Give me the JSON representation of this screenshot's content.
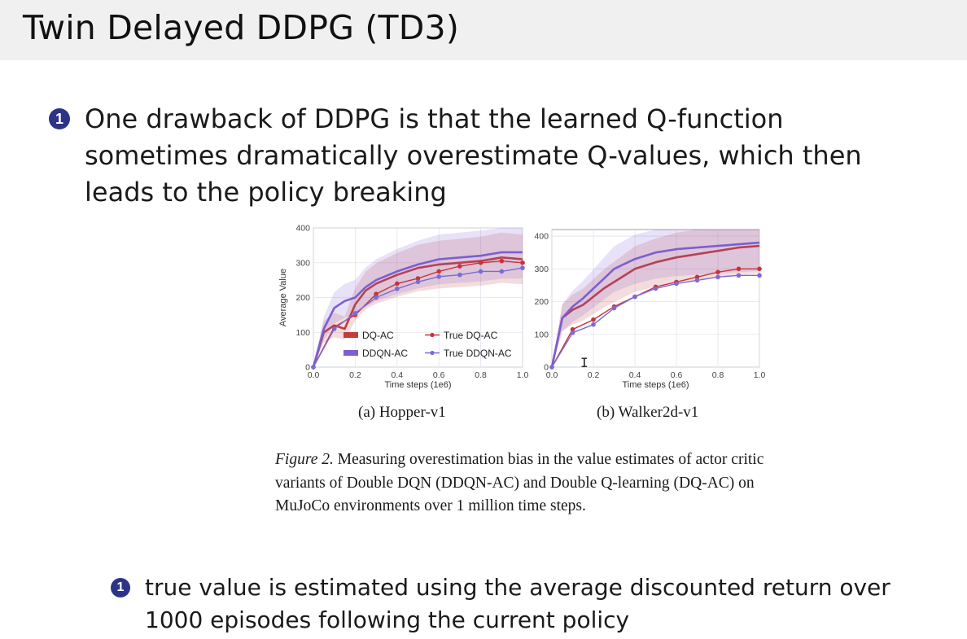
{
  "slide": {
    "title": "Twin Delayed DDPG (TD3)",
    "bullet_glyph": "1",
    "bullet1": "One drawback of DDPG is that the learned Q-function sometimes dramatically overestimate Q-values, which then leads to the policy breaking",
    "bullet2": "true value is estimated using the average discounted return over 1000 episodes following the current policy"
  },
  "figure": {
    "caption_label": "Figure 2.",
    "caption_text": " Measuring overestimation bias in the value estimates of actor critic variants of Double DQN (DDQN-AC) and Double Q-learning (DQ-AC) on MuJoCo environments over 1 million time steps.",
    "subcaption_a": "(a) Hopper-v1",
    "subcaption_b": "(b) Walker2d-v1"
  },
  "colors": {
    "dq_ac": "#c43b3b",
    "ddqn_ac": "#7b5fd0",
    "true_dq_ac": "#c8333a",
    "true_ddqn_ac": "#7a6bd6",
    "bullet": "#2d3487"
  },
  "chart_data": [
    {
      "type": "line",
      "title": "",
      "xlabel": "Time steps (1e6)",
      "ylabel": "Average Value",
      "xlim": [
        0,
        1.0
      ],
      "ylim": [
        0,
        400
      ],
      "xticks": [
        "0.0",
        "0.2",
        "0.4",
        "0.6",
        "0.8",
        "1.0"
      ],
      "yticks": [
        "0",
        "100",
        "200",
        "300",
        "400"
      ],
      "grid": true,
      "legend_position": "bottom-center",
      "series": [
        {
          "name": "DQ-AC",
          "style": "band",
          "x": [
            0,
            0.05,
            0.1,
            0.15,
            0.2,
            0.25,
            0.3,
            0.4,
            0.5,
            0.6,
            0.7,
            0.8,
            0.9,
            1.0
          ],
          "y": [
            0,
            100,
            120,
            110,
            180,
            220,
            240,
            265,
            285,
            295,
            300,
            305,
            315,
            310
          ]
        },
        {
          "name": "DDQN-AC",
          "style": "band",
          "x": [
            0,
            0.05,
            0.1,
            0.15,
            0.2,
            0.25,
            0.3,
            0.4,
            0.5,
            0.6,
            0.7,
            0.8,
            0.9,
            1.0
          ],
          "y": [
            0,
            110,
            170,
            190,
            200,
            230,
            250,
            275,
            295,
            310,
            315,
            320,
            330,
            330
          ]
        },
        {
          "name": "True DQ-AC",
          "style": "markers",
          "x": [
            0,
            0.1,
            0.2,
            0.3,
            0.4,
            0.5,
            0.6,
            0.7,
            0.8,
            0.9,
            1.0
          ],
          "y": [
            0,
            115,
            150,
            210,
            240,
            255,
            275,
            290,
            300,
            305,
            300
          ]
        },
        {
          "name": "True DDQN-AC",
          "style": "markers",
          "x": [
            0,
            0.1,
            0.2,
            0.3,
            0.4,
            0.5,
            0.6,
            0.7,
            0.8,
            0.9,
            1.0
          ],
          "y": [
            0,
            110,
            155,
            200,
            225,
            245,
            260,
            265,
            275,
            275,
            285
          ]
        }
      ]
    },
    {
      "type": "line",
      "title": "",
      "xlabel": "Time steps (1e6)",
      "ylabel": "",
      "xlim": [
        0,
        1.0
      ],
      "ylim": [
        0,
        420
      ],
      "xticks": [
        "0.0",
        "0.2",
        "0.4",
        "0.6",
        "0.8",
        "1.0"
      ],
      "yticks": [
        "0",
        "100",
        "200",
        "300",
        "400"
      ],
      "grid": true,
      "legend_position": "none",
      "series": [
        {
          "name": "DQ-AC",
          "style": "band",
          "x": [
            0,
            0.05,
            0.1,
            0.15,
            0.2,
            0.25,
            0.3,
            0.4,
            0.5,
            0.6,
            0.7,
            0.8,
            0.9,
            1.0
          ],
          "y": [
            0,
            150,
            175,
            190,
            215,
            240,
            260,
            300,
            320,
            335,
            345,
            355,
            365,
            370
          ]
        },
        {
          "name": "DDQN-AC",
          "style": "band",
          "x": [
            0,
            0.05,
            0.1,
            0.15,
            0.2,
            0.25,
            0.3,
            0.4,
            0.5,
            0.6,
            0.7,
            0.8,
            0.9,
            1.0
          ],
          "y": [
            0,
            150,
            185,
            210,
            240,
            270,
            300,
            330,
            350,
            360,
            365,
            370,
            375,
            380
          ]
        },
        {
          "name": "True DQ-AC",
          "style": "markers",
          "x": [
            0,
            0.1,
            0.2,
            0.3,
            0.4,
            0.5,
            0.6,
            0.7,
            0.8,
            0.9,
            1.0
          ],
          "y": [
            0,
            115,
            145,
            185,
            215,
            245,
            260,
            275,
            290,
            300,
            300
          ]
        },
        {
          "name": "True DDQN-AC",
          "style": "markers",
          "x": [
            0,
            0.1,
            0.2,
            0.3,
            0.4,
            0.5,
            0.6,
            0.7,
            0.8,
            0.9,
            1.0
          ],
          "y": [
            0,
            105,
            130,
            180,
            215,
            240,
            255,
            265,
            275,
            280,
            280
          ]
        }
      ]
    }
  ]
}
